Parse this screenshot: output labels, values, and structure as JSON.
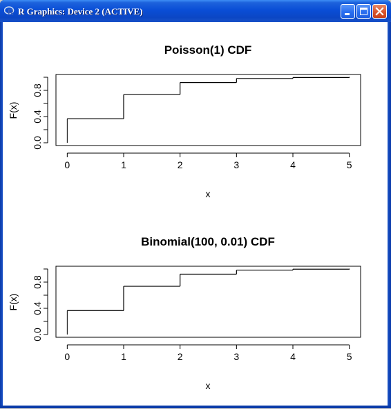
{
  "window": {
    "title": "R Graphics: Device 2 (ACTIVE)",
    "icon": "r-logo-icon",
    "buttons": [
      "minimize-icon",
      "maximize-icon",
      "close-icon"
    ]
  },
  "colors": {
    "titlebar": "#0a4ed6",
    "close_button": "#d8542c",
    "plot_line": "#000000",
    "background": "#ffffff"
  },
  "chart_data": [
    {
      "type": "line",
      "step": true,
      "title": "Poisson(1) CDF",
      "xlabel": "x",
      "ylabel": "F(x)",
      "x": [
        0,
        1,
        2,
        3,
        4,
        5
      ],
      "y": [
        0.368,
        0.736,
        0.92,
        0.981,
        0.996,
        0.999
      ],
      "xlim": [
        -0.2,
        5.2
      ],
      "ylim": [
        0,
        1
      ],
      "xticks": [
        "0",
        "1",
        "2",
        "3",
        "4",
        "5"
      ],
      "yticks": [
        "0.0",
        "0.4",
        "0.8"
      ],
      "yticks_minor": [
        0.2,
        0.6,
        1.0
      ]
    },
    {
      "type": "line",
      "step": true,
      "title": "Binomial(100, 0.01) CDF",
      "xlabel": "x",
      "ylabel": "F(x)",
      "x": [
        0,
        1,
        2,
        3,
        4,
        5
      ],
      "y": [
        0.366,
        0.736,
        0.921,
        0.982,
        0.997,
        0.999
      ],
      "xlim": [
        -0.2,
        5.2
      ],
      "ylim": [
        0,
        1
      ],
      "xticks": [
        "0",
        "1",
        "2",
        "3",
        "4",
        "5"
      ],
      "yticks": [
        "0.0",
        "0.4",
        "0.8"
      ],
      "yticks_minor": [
        0.2,
        0.6,
        1.0
      ]
    }
  ]
}
